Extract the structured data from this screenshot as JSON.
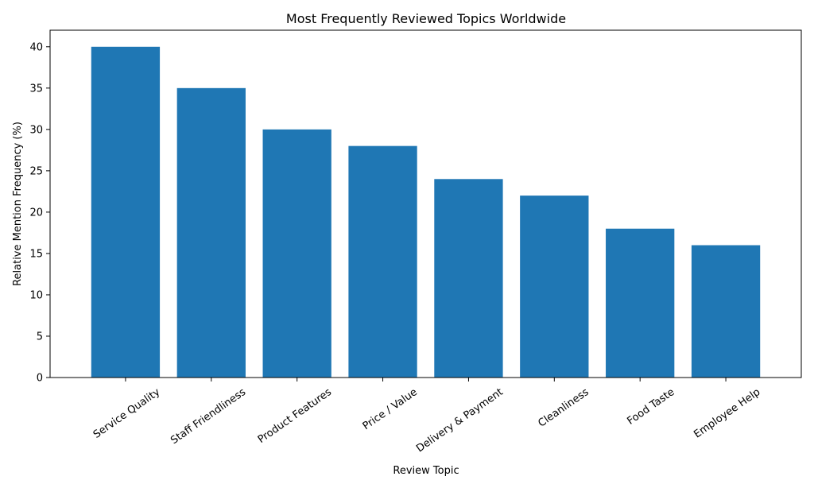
{
  "chart_data": {
    "type": "bar",
    "title": "Most Frequently Reviewed Topics Worldwide",
    "xlabel": "Review Topic",
    "ylabel": "Relative Mention Frequency (%)",
    "categories": [
      "Service Quality",
      "Staff Friendliness",
      "Product Features",
      "Price / Value",
      "Delivery & Payment",
      "Cleanliness",
      "Food Taste",
      "Employee Help"
    ],
    "values": [
      40,
      35,
      30,
      28,
      24,
      22,
      18,
      16
    ],
    "ylim": [
      0,
      42
    ],
    "yticks": [
      0,
      5,
      10,
      15,
      20,
      25,
      30,
      35,
      40
    ],
    "grid": false,
    "bar_color": "#1f77b4"
  }
}
